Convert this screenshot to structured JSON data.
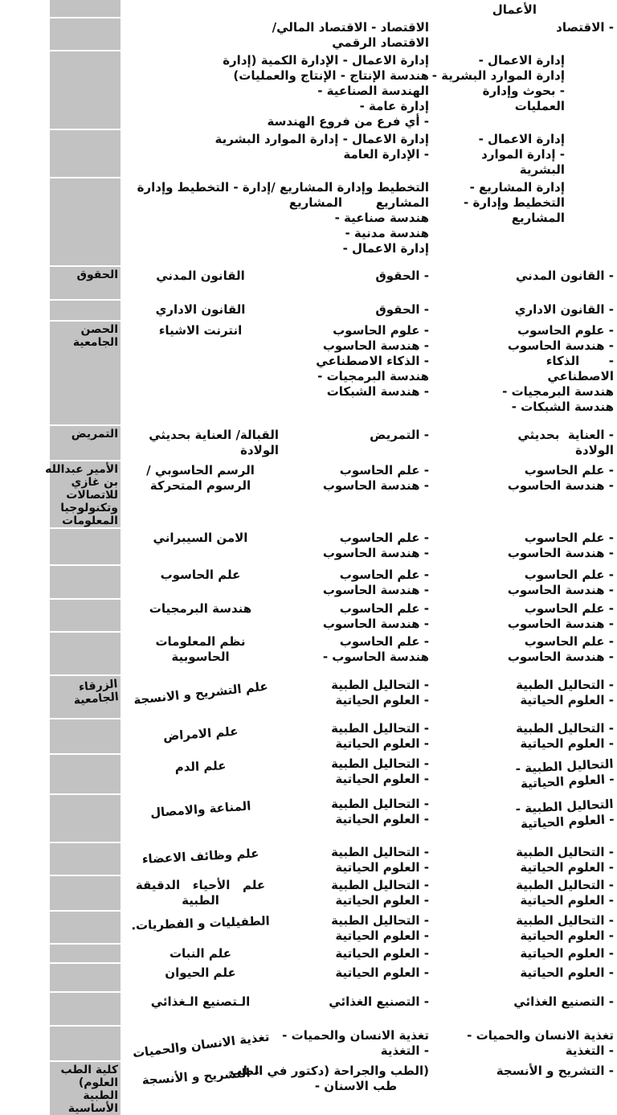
{
  "document": {
    "language": "ar",
    "kind": "scanned-table"
  },
  "colors": {
    "page_background": "#ffffff",
    "university_column_background": "#c2c2c2",
    "row_separator": "#ffffff",
    "text": "#0e0e0e"
  },
  "table": {
    "rows": [
      {
        "c1": [
          "الأعمال"
        ],
        "c2": [],
        "c3": [],
        "c4": []
      },
      {
        "c1": [
          "- الاقتصاد"
        ],
        "c2": [
          "الاقتصاد - الاقتصاد المالي/",
          "الاقتصاد الرقمي"
        ],
        "c3": [],
        "c4": []
      },
      {
        "c1": [
          "إدارة الاعمال -",
          "إدارة الموارد البشرية -",
          "- بحوث وإدارة",
          "العمليات"
        ],
        "c2": [
          "إدارة الاعمال - الإدارة الكمية (إدارة",
          "هندسة الإنتاج - الإنتاج والعمليات)",
          "الهندسة الصناعية -",
          "إدارة عامة -",
          "- أي فرع من فروع الهندسة"
        ],
        "c3": [],
        "c4": []
      },
      {
        "c1": [
          "إدارة الاعمال -",
          "- إدارة الموارد",
          "البشرية"
        ],
        "c2": [
          "إدارة الاعمال - إدارة الموارد البشرية",
          "- الإدارة العامة"
        ],
        "c3": [],
        "c4": []
      },
      {
        "c1": [
          "إدارة المشاريع -",
          "التخطيط وإدارة -",
          "المشاريع"
        ],
        "c2": [
          "التخطيط وإدارة المشاريع /إدارة - التخطيط وإدارة",
          "المشاريع        المشاريع",
          "هندسة صناعية -",
          "هندسة مدنية -",
          "إدارة الاعمال -"
        ],
        "c3": [],
        "c4": []
      },
      {
        "c1": [
          "- القانون المدني"
        ],
        "c2": [
          "- الحقوق"
        ],
        "c3": [
          "القانون المدني"
        ],
        "c4": [
          "الحقوق"
        ]
      },
      {
        "c1": [
          "- القانون الاداري"
        ],
        "c2": [
          "- الحقوق"
        ],
        "c3": [
          "القانون الاداري"
        ],
        "c4": []
      },
      {
        "c1": [
          "- علوم الحاسوب",
          "- هندسة الحاسوب",
          "-       الذكاء",
          "الاصطناعي",
          "هندسة البرمجيات -",
          "هندسة الشبكات -"
        ],
        "c2": [
          "- علوم الحاسوب",
          "- هندسة الحاسوب",
          "- الذكاء الاصطناعي",
          "هندسة البرمجيات -",
          "- هندسة الشبكات"
        ],
        "c3": [
          "انترنت الاشياء"
        ],
        "c4": [
          "الحصن",
          "الجامعية"
        ]
      },
      {
        "c1": [
          "- العناية  بحديثي",
          "الولادة"
        ],
        "c2": [
          "- التمريض"
        ],
        "c3": [
          "القبالة/ العناية بحديثي",
          "الولادة"
        ],
        "c4": [
          "التمريض"
        ]
      },
      {
        "c1": [
          "- علم الحاسوب",
          "- هندسة الحاسوب"
        ],
        "c2": [
          "- علم الحاسوب",
          "- هندسة الحاسوب"
        ],
        "c3": [
          "الرسم الحاسوبي /",
          "الرسوم المتحركة"
        ],
        "c4": [
          "الأمير عبدالله",
          "بن غازي",
          "للاتصالات",
          "وتكنولوجيا",
          "المعلومات"
        ]
      },
      {
        "c1": [
          "- علم الحاسوب",
          "- هندسة الحاسوب"
        ],
        "c2": [
          "- علم الحاسوب",
          "- هندسة الحاسوب"
        ],
        "c3": [
          "الامن السيبراني"
        ],
        "c4": []
      },
      {
        "c1": [
          "- علم الحاسوب",
          "- هندسة الحاسوب"
        ],
        "c2": [
          "- علم الحاسوب",
          "- هندسة الحاسوب"
        ],
        "c3": [
          "علم الحاسوب"
        ],
        "c4": []
      },
      {
        "c1": [
          "- علم الحاسوب",
          "- هندسة الحاسوب"
        ],
        "c2": [
          "- علم الحاسوب",
          "- هندسة الحاسوب"
        ],
        "c3": [
          "هندسة البرمجيات"
        ],
        "c4": []
      },
      {
        "c1": [
          "- علم الحاسوب",
          "- هندسة الحاسوب"
        ],
        "c2": [
          "- علم الحاسوب",
          "هندسة الحاسوب -"
        ],
        "c3": [
          "نظم المعلومات",
          "الحاسوبية"
        ],
        "c4": []
      },
      {
        "c1": [
          "- التحاليل الطبية",
          "- العلوم الحياتية"
        ],
        "c2": [
          "- التحاليل الطبية",
          "- العلوم الحياتية"
        ],
        "c3": [
          "علم التشريح و الانسجة"
        ],
        "c4": [
          "الزرقاء",
          "الجامعية"
        ]
      },
      {
        "c1": [
          "- التحاليل الطبية",
          "- العلوم الحياتية"
        ],
        "c2": [
          "- التحاليل الطبية",
          "- العلوم الحياتية"
        ],
        "c3": [
          "علم الامراض"
        ],
        "c4": []
      },
      {
        "c1": [
          "التحاليل الطبية -",
          "- العلوم الحياتية"
        ],
        "c2": [
          "- التحاليل الطبية",
          "- العلوم الحياتية"
        ],
        "c3": [
          "علم الدم"
        ],
        "c4": []
      },
      {
        "c1": [
          "التحاليل الطبية -",
          "- العلوم الحياتية"
        ],
        "c2": [
          "- التحاليل الطبية",
          "- العلوم الحياتية"
        ],
        "c3": [
          "المناعة والامصال"
        ],
        "c4": []
      },
      {
        "c1": [
          "- التحاليل الطبية",
          "- العلوم الحياتية"
        ],
        "c2": [
          "- التحاليل الطبية",
          "- العلوم الحياتية"
        ],
        "c3": [
          "علم وظائف الاعضاء"
        ],
        "c4": []
      },
      {
        "c1": [
          "- التحاليل الطبية",
          "- العلوم الحياتية"
        ],
        "c2": [
          "- التحاليل الطبية",
          "- العلوم الحياتية"
        ],
        "c3": [
          "علم   الأحياء   الدقيقة",
          "الطبية"
        ],
        "c4": []
      },
      {
        "c1": [
          "- التحاليل الطبية",
          "- العلوم الحياتية"
        ],
        "c2": [
          "- التحاليل الطبية",
          "- العلوم الحياتية"
        ],
        "c3": [
          "الطفيليات و الفطريات."
        ],
        "c4": []
      },
      {
        "c1": [
          "- العلوم الحياتية"
        ],
        "c2": [
          "- العلوم الحياتية"
        ],
        "c3": [
          "علم النبات"
        ],
        "c4": []
      },
      {
        "c1": [
          "- العلوم الحياتية"
        ],
        "c2": [
          "- العلوم الحياتية"
        ],
        "c3": [
          "علم الحيوان"
        ],
        "c4": []
      },
      {
        "c1": [
          "- التصنيع الغذائي"
        ],
        "c2": [
          "- التصنيع الغذائي"
        ],
        "c3": [
          "الـتصنيع الـغذائي"
        ],
        "c4": []
      },
      {
        "c1": [
          "تغذية الانسان والحميات -",
          "- التغذية"
        ],
        "c2": [
          "تغذية الانسان والحميات -",
          "- التغذية"
        ],
        "c3": [
          "تغذية الانسان والحميات"
        ],
        "c4": []
      },
      {
        "c1": [
          "- التشريح و الأنسجة"
        ],
        "c2": [
          "(الطب والجراحة (دكتور في الطب",
          "طب الاسنان -"
        ],
        "c3": [
          "- التشريح و الأنسجة"
        ],
        "c4": [
          "كلية الطب",
          "العلوم)",
          "الطبية",
          "الأساسية"
        ]
      }
    ]
  }
}
